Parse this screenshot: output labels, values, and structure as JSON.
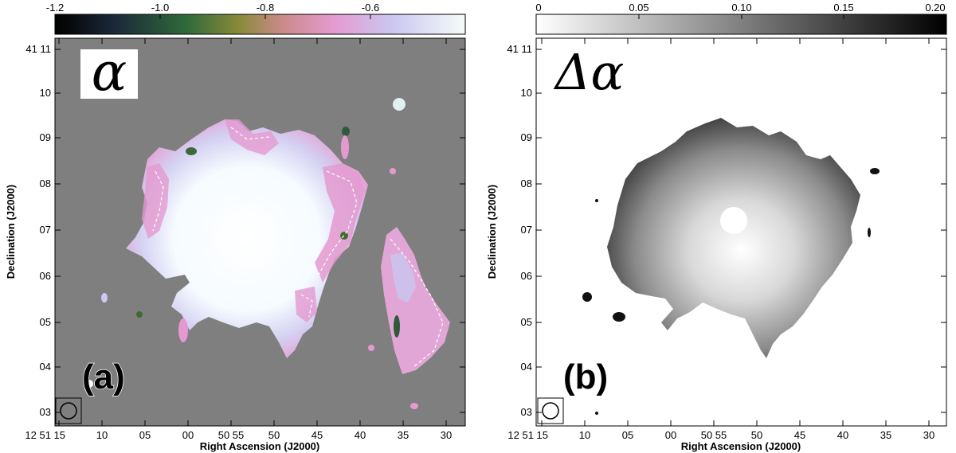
{
  "panels": [
    {
      "id": "a",
      "label": "(a)",
      "symbol": "α",
      "colorbar_ticks": [
        "-1.2",
        "-1.0",
        "-0.8",
        "-0.6"
      ],
      "colorbar_colors": [
        "#000000",
        "#2a3a4a",
        "#3f7a2e",
        "#9a8a40",
        "#d98aa0",
        "#e6a8d8",
        "#cfc8f0",
        "#f2fbf8"
      ],
      "background_color": "#7f7f7f",
      "xlabel": "Right Ascension (J2000)",
      "ylabel": "Declination (J2000)",
      "x_ticks": [
        "12 51 15",
        "10",
        "05",
        "00",
        "50 55",
        "50",
        "45",
        "40",
        "35",
        "30"
      ],
      "y_ticks": [
        "41 11",
        "10",
        "09",
        "08",
        "07",
        "06",
        "05",
        "04",
        "03"
      ]
    },
    {
      "id": "b",
      "label": "(b)",
      "symbol": "Δα",
      "colorbar_ticks": [
        "0",
        "0.05",
        "0.10",
        "0.15",
        "0.20"
      ],
      "colorbar_colors": [
        "#ffffff",
        "#000000"
      ],
      "background_color": "#ffffff",
      "xlabel": "Right Ascension (J2000)",
      "ylabel": "Declination (J2000)",
      "x_ticks": [
        "12 51 15",
        "10",
        "05",
        "00",
        "50 55",
        "50",
        "45",
        "40",
        "35",
        "30"
      ],
      "y_ticks": [
        "41 11",
        "10",
        "09",
        "08",
        "07",
        "06",
        "05",
        "04",
        "03"
      ]
    }
  ]
}
